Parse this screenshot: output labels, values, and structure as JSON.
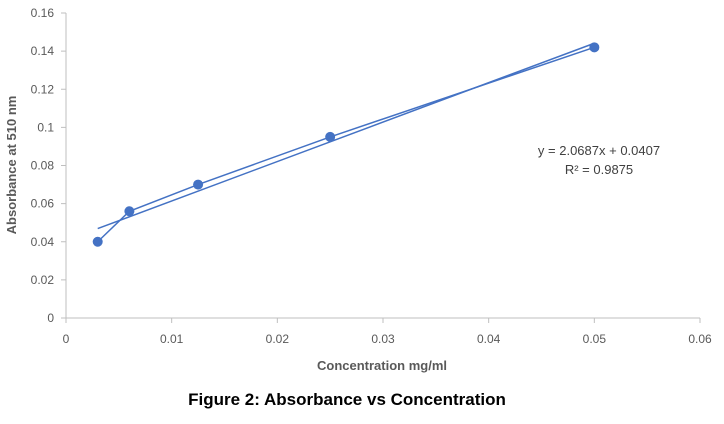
{
  "chart_data": {
    "type": "scatter",
    "title": "",
    "xlabel": "Concentration mg/ml",
    "ylabel": "Absorbance at 510 nm",
    "xlim": [
      0,
      0.06
    ],
    "ylim": [
      0,
      0.16
    ],
    "x_ticks": [
      "0",
      "0.01",
      "0.02",
      "0.03",
      "0.04",
      "0.05",
      "0.06"
    ],
    "y_ticks": [
      "0",
      "0.02",
      "0.04",
      "0.06",
      "0.08",
      "0.1",
      "0.12",
      "0.14",
      "0.16"
    ],
    "grid": false,
    "series": [
      {
        "x": [
          0.003,
          0.006,
          0.0125,
          0.025,
          0.05
        ],
        "y": [
          0.04,
          0.056,
          0.07,
          0.095,
          0.142
        ],
        "marker": "circle",
        "connected": true,
        "color": "#4472C4"
      }
    ],
    "trendline": {
      "type": "linear",
      "slope": 2.0687,
      "intercept": 0.0407,
      "x_range": [
        0.003,
        0.05
      ],
      "color": "#4472C4",
      "equation_label": "y = 2.0687x + 0.0407",
      "r2_label": "R² = 0.9875"
    }
  },
  "caption": "Figure 2: Absorbance vs Concentration"
}
